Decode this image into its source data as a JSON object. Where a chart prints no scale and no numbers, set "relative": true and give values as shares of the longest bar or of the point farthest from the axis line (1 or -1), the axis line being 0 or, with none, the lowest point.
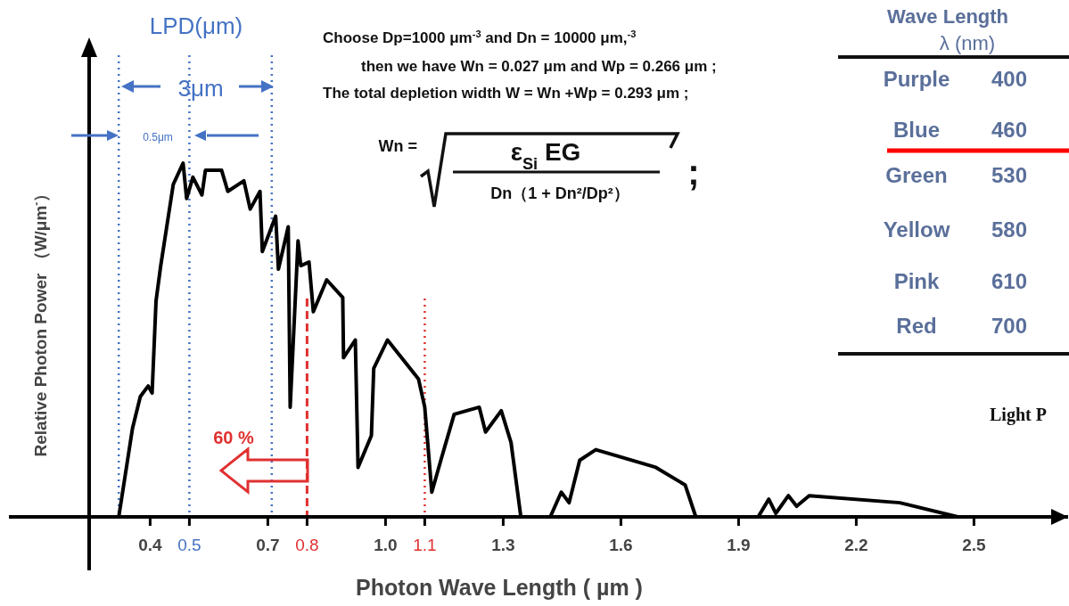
{
  "chart_data": {
    "type": "line",
    "relative": true,
    "xlabel": "Photon Wave Length ( µm )",
    "ylabel": "Relative Photon Power （W/μm$^{-}$）",
    "xlim": [
      0.04,
      2.74
    ],
    "xticks": [
      0.4,
      0.5,
      0.7,
      0.8,
      {
        "value": 1,
        "label": "1.0"
      },
      1.1,
      1.3,
      1.6,
      1.9,
      2.2,
      2.5
    ],
    "series": [
      {
        "color": "#000000",
        "x": [
          0.32,
          0.355,
          0.375,
          0.395,
          0.405,
          0.415,
          0.427,
          0.459,
          0.484,
          0.493,
          0.509,
          0.532,
          0.541,
          0.582,
          0.598,
          0.639,
          0.655,
          0.68,
          0.686,
          0.72,
          0.727,
          0.752,
          0.757,
          0.777,
          0.784,
          0.805,
          0.816,
          0.85,
          0.891,
          0.893,
          0.923,
          0.93,
          0.964,
          0.97,
          1.005,
          1.084,
          1.1,
          1.118,
          1.141,
          1.175,
          1.239,
          1.255,
          1.295,
          1.32,
          1.345,
          1.42,
          1.448,
          1.468,
          1.495,
          1.536,
          1.689,
          1.764,
          1.791,
          1.95,
          1.977,
          1.995,
          2.027,
          2.048,
          2.08,
          2.311,
          2.459
        ],
        "values": [
          0,
          0.25,
          0.34,
          0.37,
          0.35,
          0.61,
          0.71,
          0.94,
          1,
          0.9,
          0.96,
          0.91,
          0.98,
          0.98,
          0.92,
          0.95,
          0.87,
          0.92,
          0.75,
          0.85,
          0.7,
          0.82,
          0.31,
          0.78,
          0.71,
          0.72,
          0.58,
          0.67,
          0.62,
          0.45,
          0.5,
          0.14,
          0.23,
          0.42,
          0.5,
          0.39,
          0.31,
          0.07,
          0.16,
          0.29,
          0.31,
          0.24,
          0.3,
          0.21,
          0,
          0,
          0.07,
          0.04,
          0.16,
          0.19,
          0.14,
          0.09,
          0,
          0,
          0.05,
          0.01,
          0.06,
          0.03,
          0.06,
          0.04,
          0
        ]
      }
    ],
    "marker": "none",
    "line_style": "solid",
    "grid": false,
    "ref_lines": [
      {
        "axis": "x",
        "value": 0.32,
        "color": "#4472c4",
        "line_style": "dotted"
      },
      {
        "axis": "x",
        "value": 0.5,
        "color": "#4472c4",
        "line_style": "dotted"
      },
      {
        "axis": "x",
        "value": 0.71,
        "color": "#4472c4",
        "line_style": "dotted"
      },
      {
        "axis": "x",
        "value": 0.8,
        "color": "#e03030",
        "line_style": "dashed"
      },
      {
        "axis": "x",
        "value": 1.1,
        "color": "#e03030",
        "line_style": "dotted"
      }
    ],
    "annotations": [
      "LPD(μm)",
      "3μm",
      "0.5μm",
      "60 %",
      "Choose  Dp=1000 μm$^{-3}$  and Dn = 10000 μm,$^{-3}$",
      "then we have Wn = 0.027 μm  and Wp = 0.266 μm ;",
      "The total depletion width W = Wn +Wp = 0.293 μm ;",
      "Wn =",
      "ε$_{Si}$ EG",
      "Dn（1 + Dn²/Dp²）",
      ";",
      "Wave Length",
      "λ (nm)",
      "Purple",
      "400",
      "Blue",
      "460",
      "Green",
      "530",
      "Yellow",
      "580",
      "Pink",
      "610",
      "Red",
      "700",
      "Light P"
    ]
  }
}
